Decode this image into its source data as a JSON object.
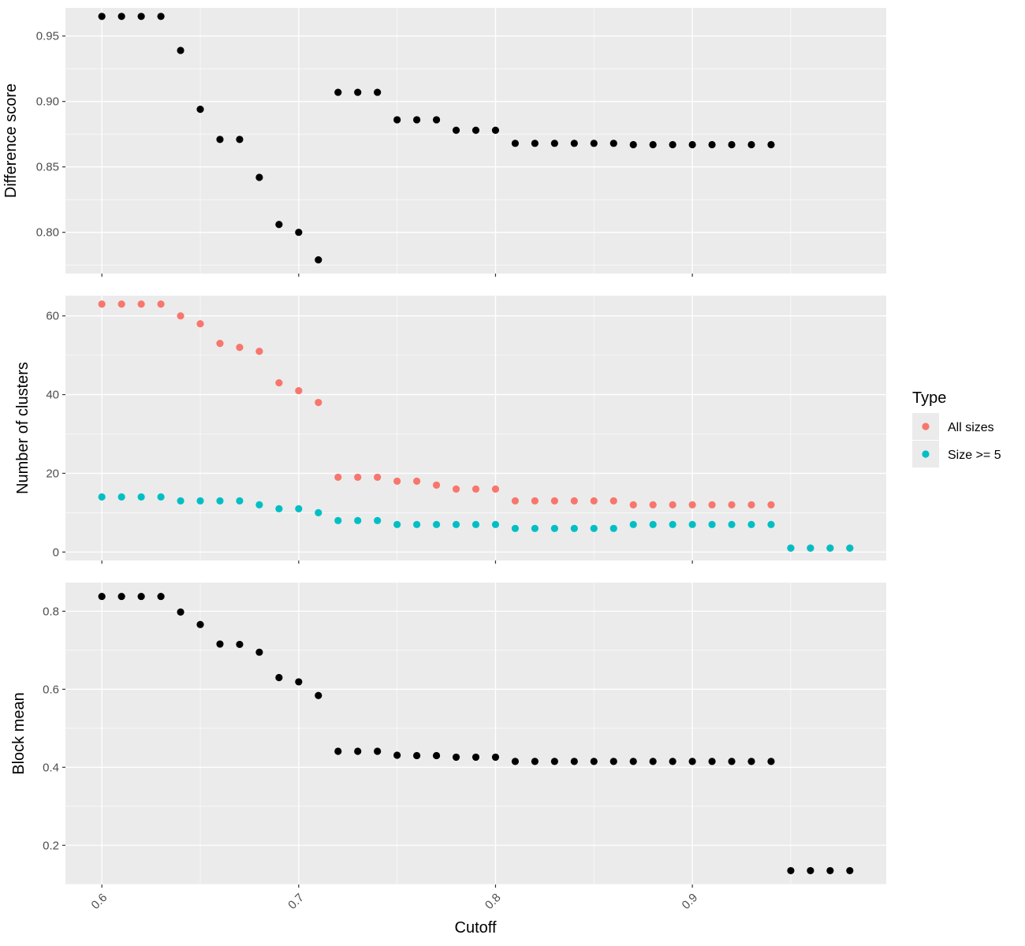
{
  "chart_data": {
    "type": "scatter",
    "x_label": "Cutoff",
    "x_ticks": [
      0.6,
      0.7,
      0.8,
      0.9
    ],
    "x_tick_labels": [
      "0.6",
      "0.7",
      "0.8",
      "0.9"
    ],
    "xlim": [
      0.5815,
      0.9985
    ],
    "grid": true,
    "legend": {
      "title": "Type",
      "position": "right",
      "entries": [
        {
          "name": "All sizes",
          "color": "#F8766D"
        },
        {
          "name": "Size >= 5",
          "color": "#00BFC4"
        }
      ]
    },
    "panels": [
      {
        "ylabel": "Difference score",
        "ylim": [
          0.7685,
          0.9715
        ],
        "y_ticks": [
          0.8,
          0.85,
          0.9,
          0.95
        ],
        "y_tick_labels": [
          "0.80",
          "0.85",
          "0.90",
          "0.95"
        ],
        "series": [
          {
            "color": "#000000",
            "points": [
              [
                0.6,
                0.965
              ],
              [
                0.61,
                0.965
              ],
              [
                0.62,
                0.965
              ],
              [
                0.63,
                0.965
              ],
              [
                0.64,
                0.939
              ],
              [
                0.65,
                0.894
              ],
              [
                0.66,
                0.871
              ],
              [
                0.67,
                0.871
              ],
              [
                0.68,
                0.842
              ],
              [
                0.69,
                0.806
              ],
              [
                0.7,
                0.8
              ],
              [
                0.71,
                0.779
              ],
              [
                0.72,
                0.907
              ],
              [
                0.73,
                0.907
              ],
              [
                0.74,
                0.907
              ],
              [
                0.75,
                0.886
              ],
              [
                0.76,
                0.886
              ],
              [
                0.77,
                0.886
              ],
              [
                0.78,
                0.878
              ],
              [
                0.79,
                0.878
              ],
              [
                0.8,
                0.878
              ],
              [
                0.81,
                0.868
              ],
              [
                0.82,
                0.868
              ],
              [
                0.83,
                0.868
              ],
              [
                0.84,
                0.868
              ],
              [
                0.85,
                0.868
              ],
              [
                0.86,
                0.868
              ],
              [
                0.87,
                0.867
              ],
              [
                0.88,
                0.867
              ],
              [
                0.89,
                0.867
              ],
              [
                0.9,
                0.867
              ],
              [
                0.91,
                0.867
              ],
              [
                0.92,
                0.867
              ],
              [
                0.93,
                0.867
              ],
              [
                0.94,
                0.867
              ]
            ]
          }
        ]
      },
      {
        "ylabel": "Number of clusters",
        "ylim": [
          -2.15,
          65.15
        ],
        "y_ticks": [
          0,
          20,
          40,
          60
        ],
        "y_tick_labels": [
          "0",
          "20",
          "40",
          "60"
        ],
        "series": [
          {
            "name": "All sizes",
            "color": "#F8766D",
            "points": [
              [
                0.6,
                63
              ],
              [
                0.61,
                63
              ],
              [
                0.62,
                63
              ],
              [
                0.63,
                63
              ],
              [
                0.64,
                60
              ],
              [
                0.65,
                58
              ],
              [
                0.66,
                53
              ],
              [
                0.67,
                52
              ],
              [
                0.68,
                51
              ],
              [
                0.69,
                43
              ],
              [
                0.7,
                41
              ],
              [
                0.71,
                38
              ],
              [
                0.72,
                19
              ],
              [
                0.73,
                19
              ],
              [
                0.74,
                19
              ],
              [
                0.75,
                18
              ],
              [
                0.76,
                18
              ],
              [
                0.77,
                17
              ],
              [
                0.78,
                16
              ],
              [
                0.79,
                16
              ],
              [
                0.8,
                16
              ],
              [
                0.81,
                13
              ],
              [
                0.82,
                13
              ],
              [
                0.83,
                13
              ],
              [
                0.84,
                13
              ],
              [
                0.85,
                13
              ],
              [
                0.86,
                13
              ],
              [
                0.87,
                12
              ],
              [
                0.88,
                12
              ],
              [
                0.89,
                12
              ],
              [
                0.9,
                12
              ],
              [
                0.91,
                12
              ],
              [
                0.92,
                12
              ],
              [
                0.93,
                12
              ],
              [
                0.94,
                12
              ],
              [
                0.95,
                1
              ],
              [
                0.96,
                1
              ],
              [
                0.97,
                1
              ],
              [
                0.98,
                1
              ]
            ]
          },
          {
            "name": "Size >= 5",
            "color": "#00BFC4",
            "points": [
              [
                0.6,
                14
              ],
              [
                0.61,
                14
              ],
              [
                0.62,
                14
              ],
              [
                0.63,
                14
              ],
              [
                0.64,
                13
              ],
              [
                0.65,
                13
              ],
              [
                0.66,
                13
              ],
              [
                0.67,
                13
              ],
              [
                0.68,
                12
              ],
              [
                0.69,
                11
              ],
              [
                0.7,
                11
              ],
              [
                0.71,
                10
              ],
              [
                0.72,
                8
              ],
              [
                0.73,
                8
              ],
              [
                0.74,
                8
              ],
              [
                0.75,
                7
              ],
              [
                0.76,
                7
              ],
              [
                0.77,
                7
              ],
              [
                0.78,
                7
              ],
              [
                0.79,
                7
              ],
              [
                0.8,
                7
              ],
              [
                0.81,
                6
              ],
              [
                0.82,
                6
              ],
              [
                0.83,
                6
              ],
              [
                0.84,
                6
              ],
              [
                0.85,
                6
              ],
              [
                0.86,
                6
              ],
              [
                0.87,
                7
              ],
              [
                0.88,
                7
              ],
              [
                0.89,
                7
              ],
              [
                0.9,
                7
              ],
              [
                0.91,
                7
              ],
              [
                0.92,
                7
              ],
              [
                0.93,
                7
              ],
              [
                0.94,
                7
              ],
              [
                0.95,
                1
              ],
              [
                0.96,
                1
              ],
              [
                0.97,
                1
              ],
              [
                0.98,
                1
              ]
            ]
          }
        ]
      },
      {
        "ylabel": "Block mean",
        "ylim": [
          0.0995,
          0.8735
        ],
        "y_ticks": [
          0.2,
          0.4,
          0.6,
          0.8
        ],
        "y_tick_labels": [
          "0.2",
          "0.4",
          "0.6",
          "0.8"
        ],
        "series": [
          {
            "color": "#000000",
            "points": [
              [
                0.6,
                0.838
              ],
              [
                0.61,
                0.838
              ],
              [
                0.62,
                0.838
              ],
              [
                0.63,
                0.838
              ],
              [
                0.64,
                0.798
              ],
              [
                0.65,
                0.766
              ],
              [
                0.66,
                0.716
              ],
              [
                0.67,
                0.715
              ],
              [
                0.68,
                0.695
              ],
              [
                0.69,
                0.63
              ],
              [
                0.7,
                0.619
              ],
              [
                0.71,
                0.584
              ],
              [
                0.72,
                0.441
              ],
              [
                0.73,
                0.441
              ],
              [
                0.74,
                0.441
              ],
              [
                0.75,
                0.431
              ],
              [
                0.76,
                0.43
              ],
              [
                0.77,
                0.43
              ],
              [
                0.78,
                0.426
              ],
              [
                0.79,
                0.426
              ],
              [
                0.8,
                0.426
              ],
              [
                0.81,
                0.415
              ],
              [
                0.82,
                0.415
              ],
              [
                0.83,
                0.415
              ],
              [
                0.84,
                0.415
              ],
              [
                0.85,
                0.415
              ],
              [
                0.86,
                0.415
              ],
              [
                0.87,
                0.415
              ],
              [
                0.88,
                0.415
              ],
              [
                0.89,
                0.415
              ],
              [
                0.9,
                0.415
              ],
              [
                0.91,
                0.415
              ],
              [
                0.92,
                0.415
              ],
              [
                0.93,
                0.415
              ],
              [
                0.94,
                0.415
              ],
              [
                0.95,
                0.135
              ],
              [
                0.96,
                0.135
              ],
              [
                0.97,
                0.135
              ],
              [
                0.98,
                0.135
              ]
            ]
          }
        ]
      }
    ]
  }
}
